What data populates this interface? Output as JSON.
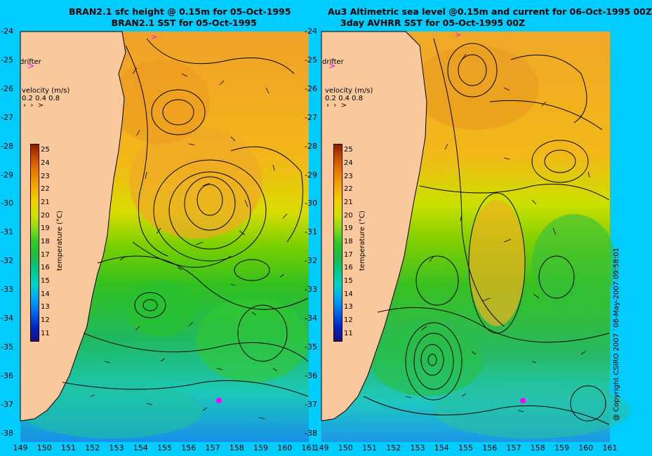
{
  "panels": [
    {
      "title_line1": "BRAN2.1 sfc height @ 0.15m for 05-Oct-1995",
      "title_line2": "BRAN2.1 SST for 05-Oct-1995",
      "drifter_label": "drifter",
      "velocity_title": "velocity (m/s)",
      "velocity_values": "0.2 0.4 0.8",
      "colorbar_title": "temperature (°C)"
    },
    {
      "title_line1": "Au3 Altimetric sea level  @0.15m and current for 06-Oct-1995 00Z",
      "title_line2": "3day AVHRR SST for 05-Oct-1995 00Z",
      "drifter_label": "drifter",
      "velocity_title": "velocity (m/s)",
      "velocity_values": "0.2 0.4 0.8",
      "colorbar_title": "temperature (°C)"
    }
  ],
  "axes": {
    "lat_labels": [
      "-24",
      "-25",
      "-26",
      "-27",
      "-28",
      "-29",
      "-30",
      "-31",
      "-32",
      "-33",
      "-34",
      "-35",
      "-36",
      "-37",
      "-38"
    ],
    "lon_labels": [
      "149",
      "150",
      "151",
      "152",
      "153",
      "154",
      "155",
      "156",
      "157",
      "158",
      "159",
      "160",
      "161"
    ],
    "lon_range": [
      149,
      161
    ],
    "lat_range": [
      -38.3,
      -24
    ]
  },
  "colorbar": {
    "ticks": [
      "25",
      "24",
      "23",
      "22",
      "21",
      "20",
      "19",
      "18",
      "17",
      "16",
      "15",
      "14",
      "13",
      "12",
      "11"
    ],
    "range": [
      10.5,
      25.5
    ],
    "colors": [
      "#1a0d80",
      "#0026c0",
      "#0066e6",
      "#00a6f2",
      "#00d2c8",
      "#00c890",
      "#22b848",
      "#2ec828",
      "#8cd81a",
      "#d2e000",
      "#f0d000",
      "#f2a800",
      "#e88000",
      "#c85000",
      "#8c1c00"
    ]
  },
  "copyright": "@ Copyright CSIRO 2007 `08-May-2007 09:58:01"
}
